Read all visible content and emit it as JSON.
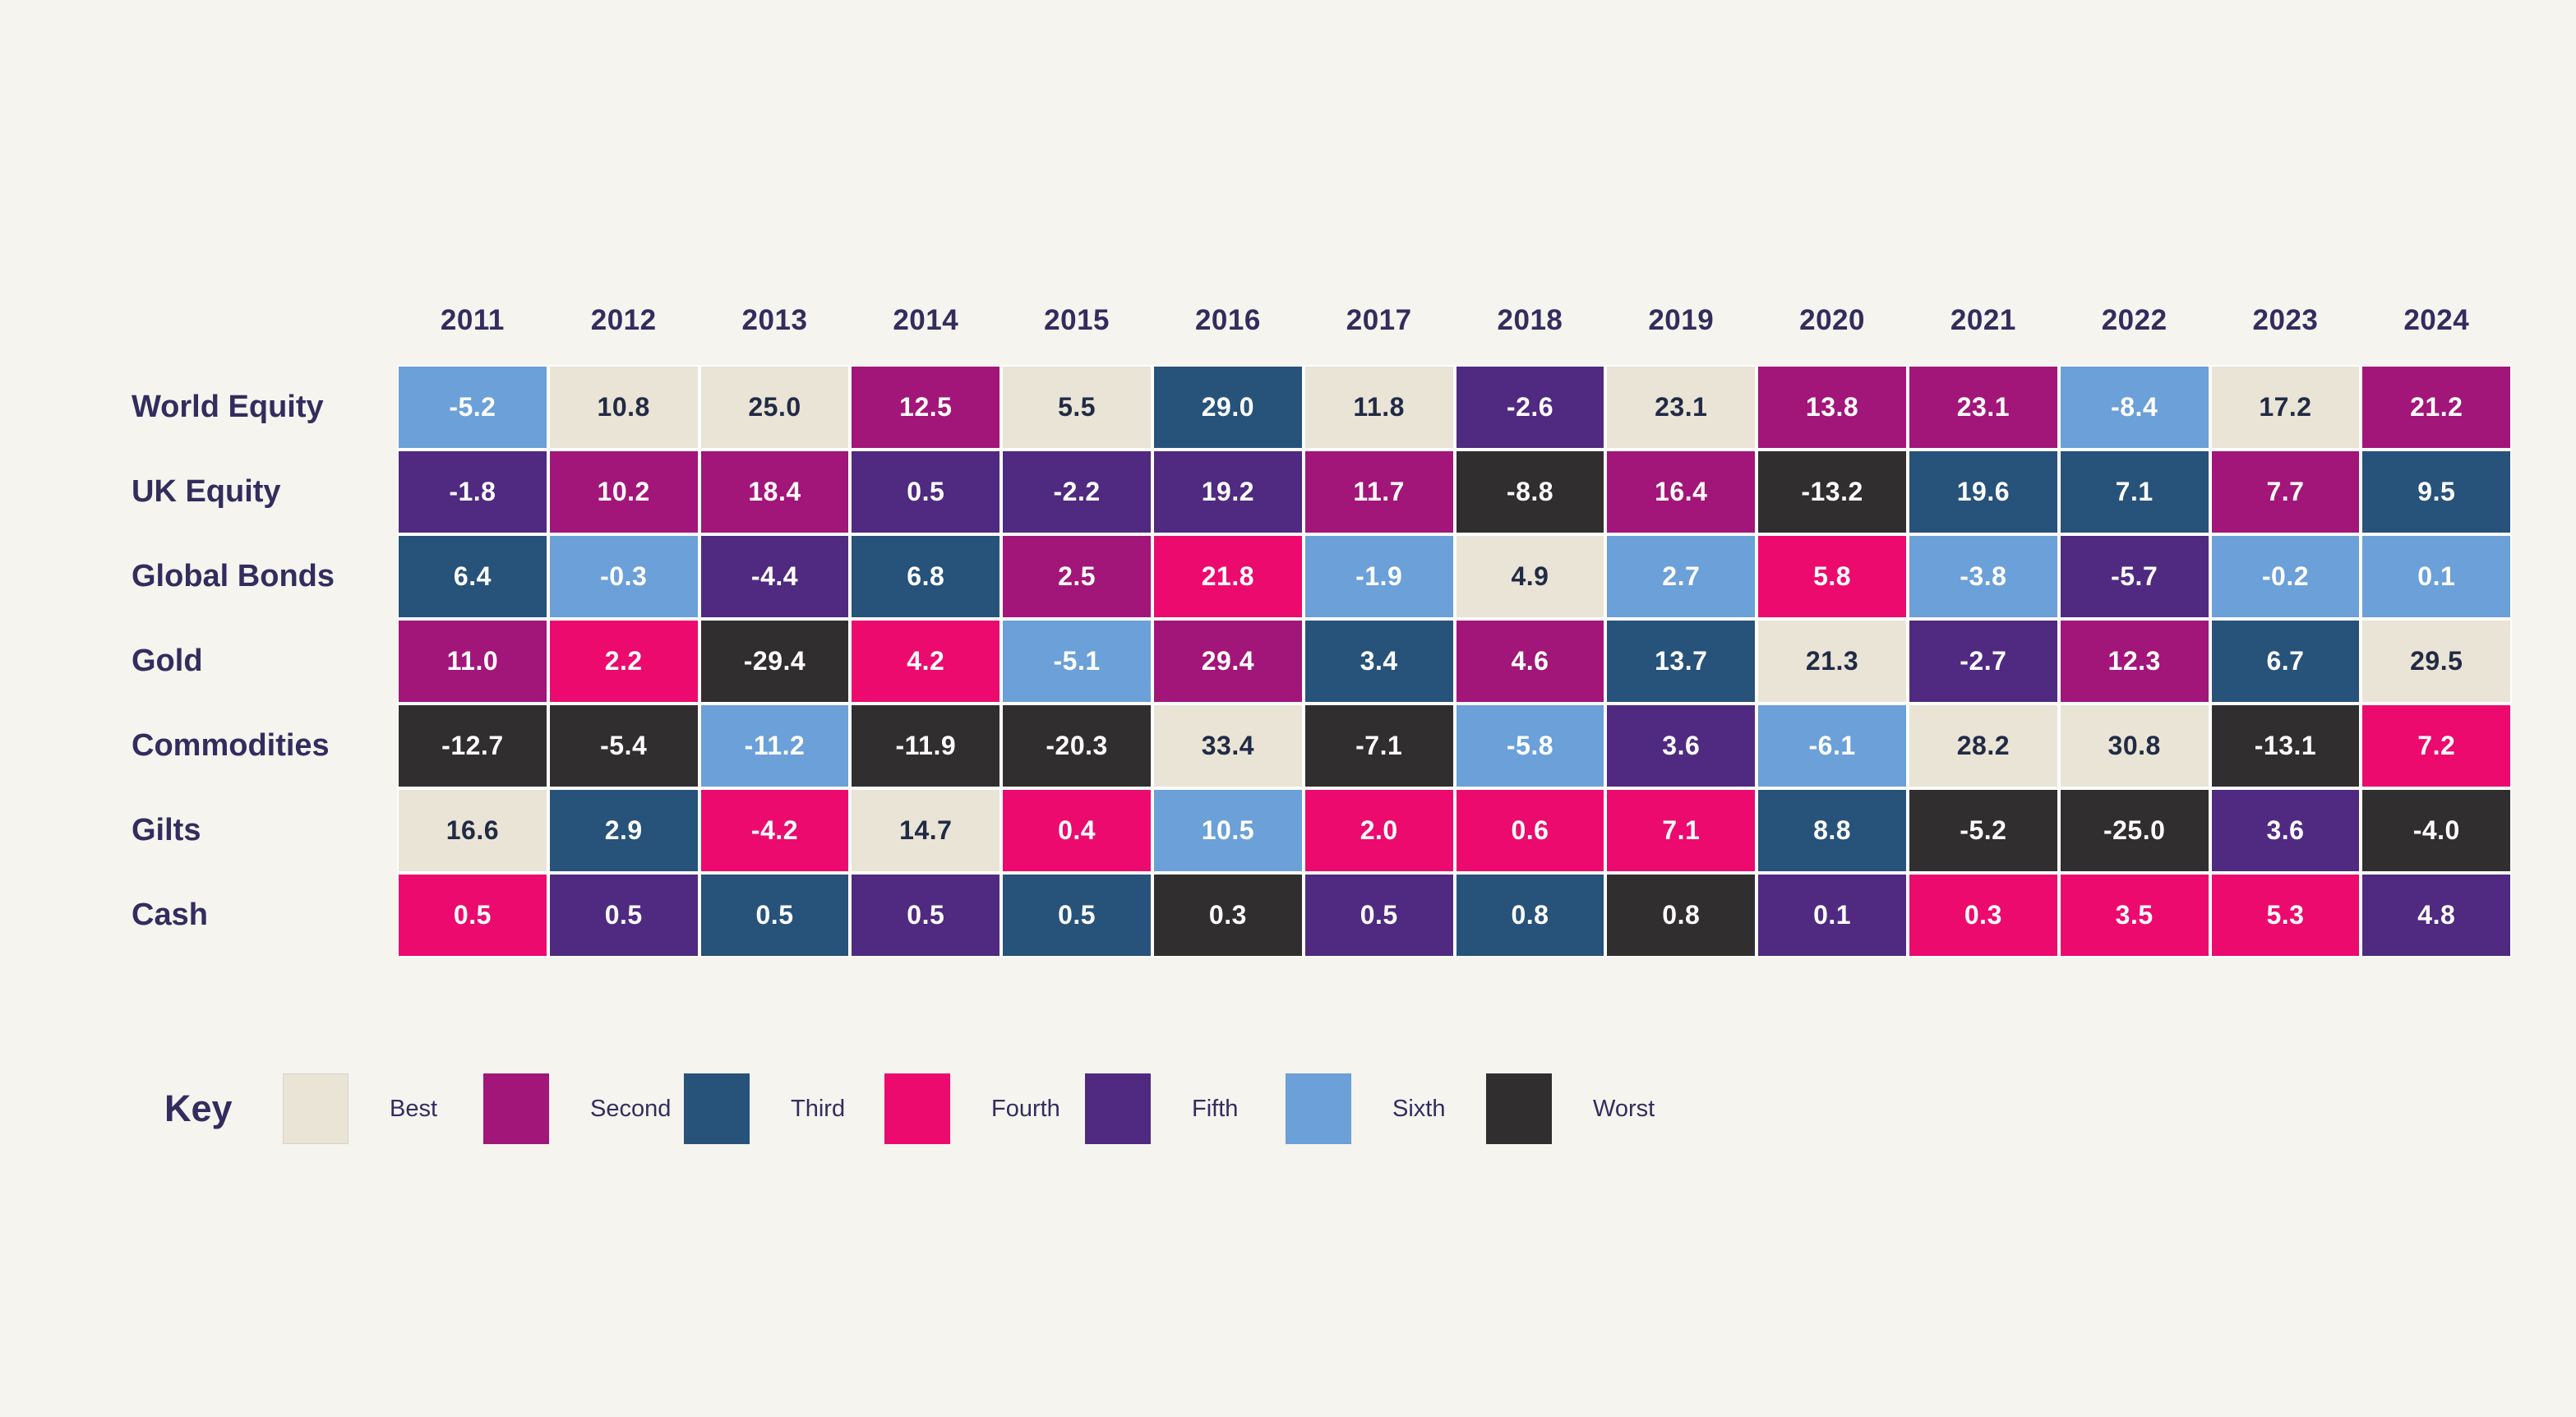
{
  "chart_data": {
    "type": "heatmap",
    "title": "",
    "categories": [
      "2011",
      "2012",
      "2013",
      "2014",
      "2015",
      "2016",
      "2017",
      "2018",
      "2019",
      "2020",
      "2021",
      "2022",
      "2023",
      "2024"
    ],
    "series": [
      {
        "name": "World Equity",
        "values": [
          -5.2,
          10.8,
          25.0,
          12.5,
          5.5,
          29.0,
          11.8,
          -2.6,
          23.1,
          13.8,
          23.1,
          -8.4,
          17.2,
          21.2
        ],
        "ranks": [
          "sixth",
          "best",
          "best",
          "second",
          "best",
          "third",
          "best",
          "fifth",
          "best",
          "second",
          "second",
          "sixth",
          "best",
          "second"
        ]
      },
      {
        "name": "UK Equity",
        "values": [
          -1.8,
          10.2,
          18.4,
          0.5,
          -2.2,
          19.2,
          11.7,
          -8.8,
          16.4,
          -13.2,
          19.6,
          7.1,
          7.7,
          9.5
        ],
        "ranks": [
          "fifth",
          "second",
          "second",
          "fifth",
          "fifth",
          "fifth",
          "second",
          "worst",
          "second",
          "worst",
          "third",
          "third",
          "second",
          "third"
        ]
      },
      {
        "name": "Global Bonds",
        "values": [
          6.4,
          -0.3,
          -4.4,
          6.8,
          2.5,
          21.8,
          -1.9,
          4.9,
          2.7,
          5.8,
          -3.8,
          -5.7,
          -0.2,
          0.1
        ],
        "ranks": [
          "third",
          "sixth",
          "fifth",
          "third",
          "second",
          "fourth",
          "sixth",
          "best",
          "sixth",
          "fourth",
          "sixth",
          "fifth",
          "sixth",
          "sixth"
        ]
      },
      {
        "name": "Gold",
        "values": [
          11.0,
          2.2,
          -29.4,
          4.2,
          -5.1,
          29.4,
          3.4,
          4.6,
          13.7,
          21.3,
          -2.7,
          12.3,
          6.7,
          29.5
        ],
        "ranks": [
          "second",
          "fourth",
          "worst",
          "fourth",
          "sixth",
          "second",
          "third",
          "second",
          "third",
          "best",
          "fifth",
          "second",
          "third",
          "best"
        ]
      },
      {
        "name": "Commodities",
        "values": [
          -12.7,
          -5.4,
          -11.2,
          -11.9,
          -20.3,
          33.4,
          -7.1,
          -5.8,
          3.6,
          -6.1,
          28.2,
          30.8,
          -13.1,
          7.2
        ],
        "ranks": [
          "worst",
          "worst",
          "sixth",
          "worst",
          "worst",
          "best",
          "worst",
          "sixth",
          "fifth",
          "sixth",
          "best",
          "best",
          "worst",
          "fourth"
        ]
      },
      {
        "name": "Gilts",
        "values": [
          16.6,
          2.9,
          -4.2,
          14.7,
          0.4,
          10.5,
          2.0,
          0.6,
          7.1,
          8.8,
          -5.2,
          -25.0,
          3.6,
          -4.0
        ],
        "ranks": [
          "best",
          "third",
          "fourth",
          "best",
          "fourth",
          "sixth",
          "fourth",
          "fourth",
          "fourth",
          "third",
          "worst",
          "worst",
          "fifth",
          "worst"
        ]
      },
      {
        "name": "Cash",
        "values": [
          0.5,
          0.5,
          0.5,
          0.5,
          0.5,
          0.3,
          0.5,
          0.8,
          0.8,
          0.1,
          0.3,
          3.5,
          5.3,
          4.8
        ],
        "ranks": [
          "fourth",
          "fifth",
          "third",
          "fifth",
          "third",
          "worst",
          "fifth",
          "third",
          "worst",
          "fifth",
          "fourth",
          "fourth",
          "fourth",
          "fifth"
        ]
      }
    ],
    "legend_position": "bottom",
    "grid": false
  },
  "key": {
    "title": "Key",
    "items": [
      {
        "label": "Best",
        "rank": "best"
      },
      {
        "label": "Second",
        "rank": "second"
      },
      {
        "label": "Third",
        "rank": "third"
      },
      {
        "label": "Fourth",
        "rank": "fourth"
      },
      {
        "label": "Fifth",
        "rank": "fifth"
      },
      {
        "label": "Sixth",
        "rank": "sixth"
      },
      {
        "label": "Worst",
        "rank": "worst"
      }
    ]
  },
  "rank_colors": {
    "best": "#e9e4d6",
    "second": "#a21579",
    "third": "#27527a",
    "fourth": "#ec0a6e",
    "fifth": "#4f2a80",
    "sixth": "#6ba0d8",
    "worst": "#302e2f"
  },
  "text_colors": {
    "heading": "#332d5e",
    "on_light": "#222b45",
    "on_dark": "#ffffff"
  },
  "background": "#f5f4ef"
}
